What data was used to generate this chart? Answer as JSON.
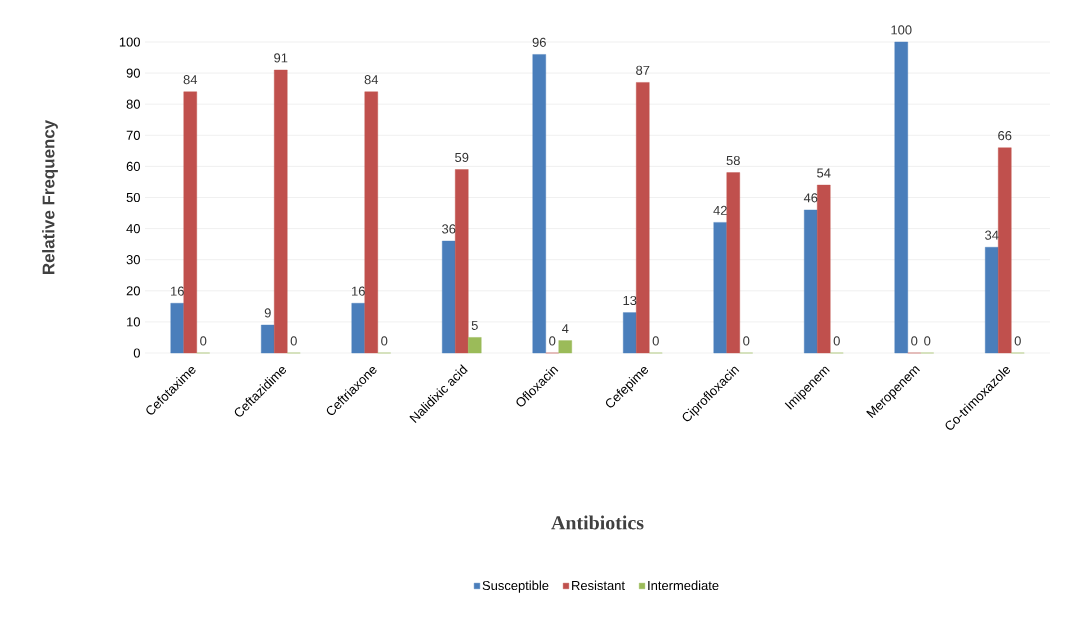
{
  "chart_data": {
    "type": "bar",
    "xlabel": "Antibiotics",
    "ylabel": "Relative Frequency",
    "categories": [
      "Cefotaxime",
      "Ceftazidime",
      "Ceftriaxone",
      "Nalidixic acid",
      "Ofloxacin",
      "Cefepime",
      "Ciprofloxacin",
      "Imipenem",
      "Meropenem",
      "Co-trimoxazole"
    ],
    "series": [
      {
        "name": "Susceptible",
        "color": "#4a7ebb",
        "values": [
          16,
          9,
          16,
          36,
          96,
          13,
          42,
          46,
          100,
          34
        ]
      },
      {
        "name": "Resistant",
        "color": "#c0504d",
        "values": [
          84,
          91,
          84,
          59,
          0,
          87,
          58,
          54,
          0,
          66
        ]
      },
      {
        "name": "Intermediate",
        "color": "#9bbb59",
        "values": [
          0,
          0,
          0,
          5,
          4,
          0,
          0,
          0,
          0,
          0
        ]
      }
    ],
    "ylim": [
      0,
      100
    ],
    "yticks": [
      0,
      10,
      20,
      30,
      40,
      50,
      60,
      70,
      80,
      90,
      100
    ],
    "grid": "y",
    "legend": "bottom",
    "data_labels": true
  }
}
